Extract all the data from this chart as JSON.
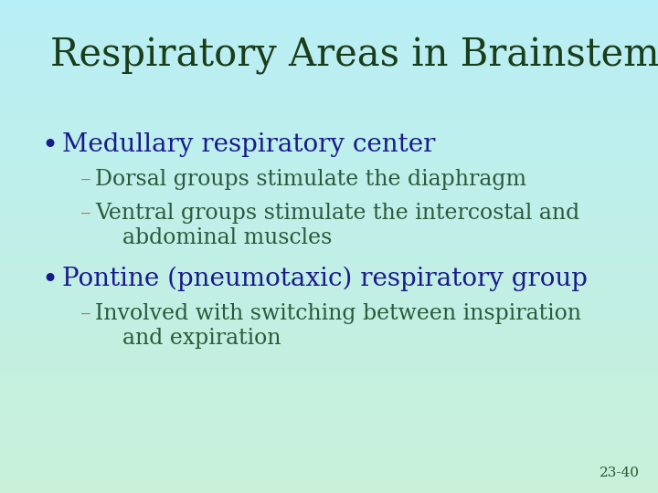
{
  "title": "Respiratory Areas in Brainstem",
  "title_color": "#1a3d1a",
  "title_fontsize": 30,
  "bg_color_top": "#b8eef5",
  "bg_color_bottom": "#c8f0d8",
  "bullet_color": "#1a1a8c",
  "bullet1_text": "Medullary respiratory center",
  "bullet1_fontsize": 20,
  "sub1a_dash": "– ",
  "sub1a_text": "Dorsal groups stimulate the diaphragm",
  "sub1b_dash": "– ",
  "sub1b_text": "Ventral groups stimulate the intercostal and\n    abdominal muscles",
  "sub_fontsize": 17,
  "sub_color": "#2a5a3a",
  "dash_color": "#c87060",
  "bullet2_text": "Pontine (pneumotaxic) respiratory group",
  "bullet2_fontsize": 20,
  "sub2a_dash": "– ",
  "sub2a_text": "Involved with switching between inspiration\n    and expiration",
  "page_num": "23-40",
  "page_fontsize": 11,
  "page_color": "#2a5a3a"
}
